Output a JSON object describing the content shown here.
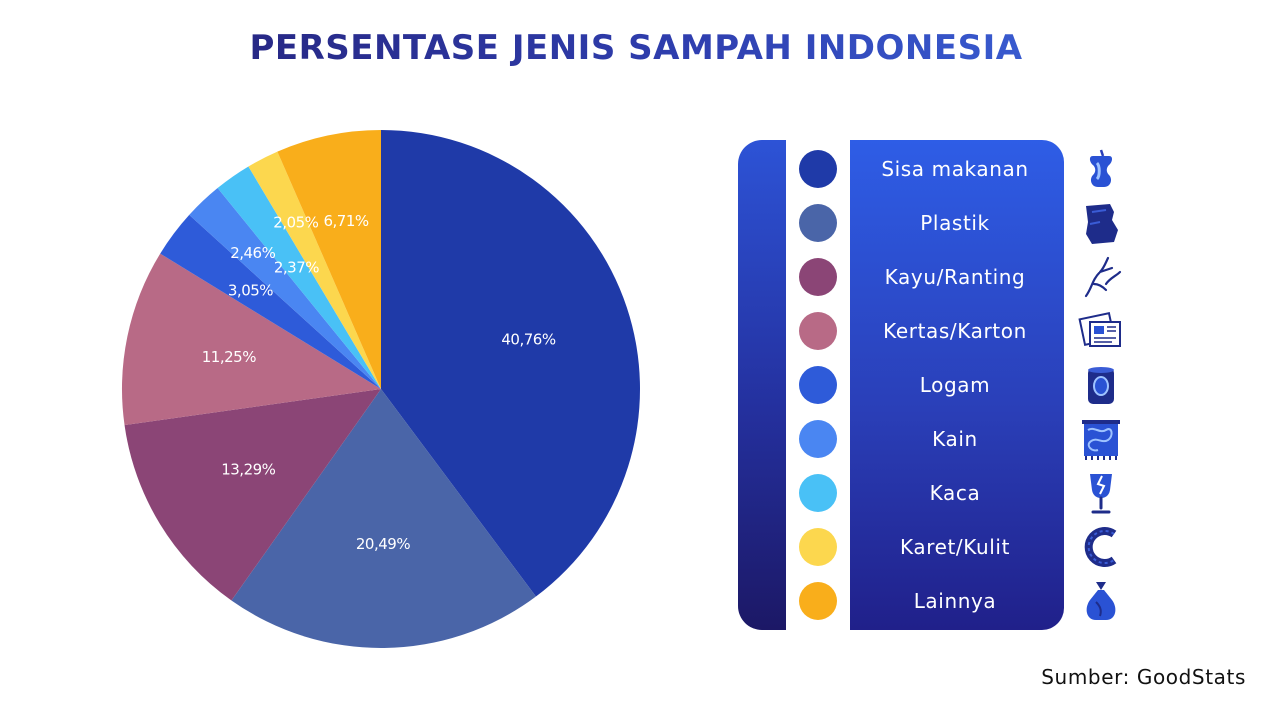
{
  "chart_data": {
    "type": "pie",
    "title": "PERSENTASE JENIS SAMPAH INDONESIA",
    "categories": [
      "Sisa makanan",
      "Plastik",
      "Kayu/Ranting",
      "Kertas/Karton",
      "Logam",
      "Kain",
      "Kaca",
      "Karet/Kulit",
      "Lainnya"
    ],
    "values": [
      40.76,
      20.49,
      13.29,
      11.25,
      3.05,
      2.46,
      2.37,
      2.05,
      6.71
    ],
    "data_labels": [
      "40,76%",
      "20,49%",
      "13,29%",
      "11,25%",
      "3,05%",
      "2,46%",
      "2,37%",
      "2,05%",
      "6,71%"
    ],
    "colors": [
      "#1f3aa8",
      "#4a65a8",
      "#8b4576",
      "#b86a86",
      "#2e5bd9",
      "#4a86f2",
      "#49c1f6",
      "#fcd74e",
      "#f9ae1b"
    ],
    "legend": "right",
    "start_angle": "12 o'clock",
    "direction": "clockwise"
  },
  "legend_items": [
    {
      "label": "Sisa makanan",
      "color": "#1f3aa8",
      "icon": "apple-core-icon"
    },
    {
      "label": "Plastik",
      "color": "#4a65a8",
      "icon": "plastic-bag-icon"
    },
    {
      "label": "Kayu/Ranting",
      "color": "#8b4576",
      "icon": "twig-icon"
    },
    {
      "label": "Kertas/Karton",
      "color": "#b86a86",
      "icon": "newspaper-icon"
    },
    {
      "label": "Logam",
      "color": "#2e5bd9",
      "icon": "tin-can-icon"
    },
    {
      "label": "Kain",
      "color": "#4a86f2",
      "icon": "fabric-cloth-icon"
    },
    {
      "label": "Kaca",
      "color": "#49c1f6",
      "icon": "broken-glass-icon"
    },
    {
      "label": "Karet/Kulit",
      "color": "#fcd74e",
      "icon": "rubber-tire-icon"
    },
    {
      "label": "Lainnya",
      "color": "#f9ae1b",
      "icon": "trash-bag-icon"
    }
  ],
  "source": "Sumber: GoodStats"
}
